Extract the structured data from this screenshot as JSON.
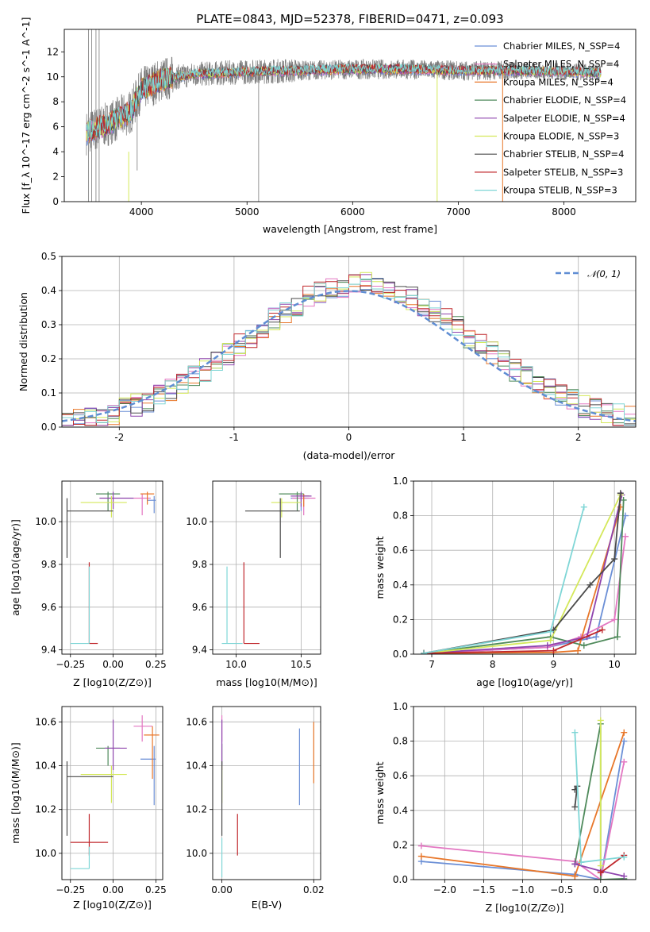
{
  "title": "PLATE=0843, MJD=52378, FIBERID=0471, z=0.093",
  "legend_labels": [
    "Chabrier MILES, N$_{SSP}$=4",
    "Salpeter MILES, N$_{SSP}$=4",
    "Kroupa MILES, N$_{SSP}$=4",
    "Chabrier ELODIE, N$_{SSP}$=4",
    "Salpeter ELODIE, N$_{SSP}$=4",
    "Kroupa ELODIE, N$_{SSP}$=3",
    "Chabrier STELIB, N$_{SSP}$=4",
    "Salpeter STELIB, N$_{SSP}$=3",
    "Kroupa STELIB, N$_{SSP}$=3"
  ],
  "legend_display": [
    "Chabrier MILES, N_SSP=4",
    "Salpeter MILES, N_SSP=4",
    "Kroupa MILES, N_SSP=4",
    "Chabrier ELODIE, N_SSP=4",
    "Salpeter ELODIE, N_SSP=4",
    "Kroupa ELODIE, N_SSP=3",
    "Chabrier STELIB, N_SSP=4",
    "Salpeter STELIB, N_SSP=3",
    "Kroupa STELIB, N_SSP=3"
  ],
  "colors": [
    "#6b8fd6",
    "#e377c2",
    "#e8772a",
    "#4f8a5b",
    "#8e44ad",
    "#d4e85a",
    "#4a4a4a",
    "#c0282d",
    "#7fd6d6"
  ],
  "chart_data": [
    {
      "id": "spectrum",
      "type": "line",
      "xlabel": "wavelength [Angstrom, rest frame]",
      "ylabel": "Flux [f_λ 10^-17 erg cm^-2 s^-1 A^-1]",
      "xlim": [
        3270,
        8680
      ],
      "ylim": [
        0,
        13.8
      ],
      "xticks": [
        4000,
        5000,
        6000,
        7000,
        8000
      ],
      "yticks": [
        0,
        2,
        4,
        6,
        8,
        10,
        12
      ],
      "legend_position": "right",
      "data_range": [
        3480,
        8350
      ],
      "continuum": [
        [
          3480,
          5.5
        ],
        [
          3700,
          6.3
        ],
        [
          3900,
          7.2
        ],
        [
          4000,
          9.0
        ],
        [
          4200,
          9.8
        ],
        [
          4500,
          10.2
        ],
        [
          5000,
          10.4
        ],
        [
          5500,
          10.5
        ],
        [
          6000,
          10.6
        ],
        [
          6500,
          10.6
        ],
        [
          7000,
          10.5
        ],
        [
          7500,
          10.5
        ],
        [
          8000,
          10.4
        ],
        [
          8350,
          10.3
        ]
      ],
      "grid": false
    },
    {
      "id": "residuals",
      "type": "step",
      "xlabel": "(data-model)/error",
      "ylabel": "Normed distribution",
      "xlim": [
        -2.5,
        2.5
      ],
      "ylim": [
        0,
        0.5
      ],
      "xticks": [
        -2,
        -1,
        0,
        1,
        2
      ],
      "yticks": [
        0.0,
        0.1,
        0.2,
        0.3,
        0.4,
        0.5
      ],
      "legend": "𝒩(0, 1)",
      "legend_position": "top-right",
      "reference_curve": "normal(0,1)",
      "grid": true
    },
    {
      "id": "age_vs_Z",
      "type": "errorbar",
      "xlabel": "Z [log10(Z/Z⊙)]",
      "ylabel": "age [log10(age/yr)]",
      "xlim": [
        -0.3,
        0.29
      ],
      "ylim": [
        9.38,
        10.19
      ],
      "xticks": [
        -0.25,
        0.0,
        0.25
      ],
      "xtick_labels": [
        "−0.25",
        "0.00",
        "0.25"
      ],
      "yticks": [
        9.4,
        9.6,
        9.8,
        10.0
      ],
      "ytick_labels": [
        "9.4",
        "9.6",
        "9.8",
        "10.0"
      ],
      "points": [
        {
          "x": 0.24,
          "xerr": [
            0.04,
            0.01
          ],
          "y": 10.1,
          "yerr": [
            0.06,
            0.02
          ]
        },
        {
          "x": 0.17,
          "xerr": [
            0.05,
            0.05
          ],
          "y": 10.11,
          "yerr": [
            0.08,
            0.02
          ]
        },
        {
          "x": 0.2,
          "xerr": [
            0.04,
            0.04
          ],
          "y": 10.13,
          "yerr": [
            0.05,
            0.01
          ]
        },
        {
          "x": -0.03,
          "xerr": [
            0.07,
            0.07
          ],
          "y": 10.13,
          "yerr": [
            0.08,
            0.01
          ]
        },
        {
          "x": 0.0,
          "xerr": [
            0.08,
            0.12
          ],
          "y": 10.11,
          "yerr": [
            0.05,
            0.03
          ]
        },
        {
          "x": -0.01,
          "xerr": [
            0.18,
            0.09
          ],
          "y": 10.09,
          "yerr": [
            0.07,
            0.03
          ]
        },
        {
          "x": -0.27,
          "xerr": [
            0.0,
            0.27
          ],
          "y": 10.05,
          "yerr": [
            0.22,
            0.06
          ]
        },
        {
          "x": -0.14,
          "xerr": [
            0.0,
            0.05
          ],
          "y": 9.43,
          "yerr": [
            0.0,
            0.38
          ]
        },
        {
          "x": -0.14,
          "xerr": [
            0.11,
            0.0
          ],
          "y": 9.43,
          "yerr": [
            0.0,
            0.36
          ]
        }
      ],
      "grid": true
    },
    {
      "id": "age_vs_mass",
      "type": "errorbar",
      "xlabel": "mass [log10(M/M⊙)]",
      "ylabel": "",
      "xlim": [
        9.82,
        10.65
      ],
      "ylim": [
        9.38,
        10.19
      ],
      "xticks": [
        10.0,
        10.5
      ],
      "xtick_labels": [
        "10.0",
        "10.5"
      ],
      "yticks": [
        9.4,
        9.6,
        9.8,
        10.0
      ],
      "ytick_labels": [
        "9.4",
        "9.6",
        "9.8",
        "10.0"
      ],
      "points": [
        {
          "x": 10.5,
          "xerr": [
            0.08,
            0.06
          ],
          "y": 10.11,
          "yerr": [
            0.06,
            0.02
          ]
        },
        {
          "x": 10.52,
          "xerr": [
            0.09,
            0.09
          ],
          "y": 10.11,
          "yerr": [
            0.08,
            0.02
          ]
        },
        {
          "x": 10.52,
          "xerr": [
            0.06,
            0.04
          ],
          "y": 10.12,
          "yerr": [
            0.05,
            0.01
          ]
        },
        {
          "x": 10.47,
          "xerr": [
            0.14,
            0.05
          ],
          "y": 10.13,
          "yerr": [
            0.08,
            0.01
          ]
        },
        {
          "x": 10.5,
          "xerr": [
            0.08,
            0.08
          ],
          "y": 10.12,
          "yerr": [
            0.05,
            0.02
          ]
        },
        {
          "x": 10.35,
          "xerr": [
            0.08,
            0.15
          ],
          "y": 10.09,
          "yerr": [
            0.07,
            0.02
          ]
        },
        {
          "x": 10.34,
          "xerr": [
            0.27,
            0.15
          ],
          "y": 10.05,
          "yerr": [
            0.22,
            0.06
          ]
        },
        {
          "x": 10.06,
          "xerr": [
            0.0,
            0.12
          ],
          "y": 9.43,
          "yerr": [
            0.0,
            0.38
          ]
        },
        {
          "x": 9.93,
          "xerr": [
            0.04,
            0.12
          ],
          "y": 9.43,
          "yerr": [
            0.0,
            0.36
          ]
        }
      ],
      "grid": true
    },
    {
      "id": "mw_vs_age",
      "type": "line",
      "xlabel": "age [log10(age/yr)]",
      "ylabel": "mass weight",
      "xlim": [
        6.7,
        10.35
      ],
      "ylim": [
        0,
        1.0
      ],
      "xticks": [
        7,
        8,
        9,
        10
      ],
      "yticks": [
        0.0,
        0.2,
        0.4,
        0.6,
        0.8,
        1.0
      ],
      "series": [
        {
          "x": [
            6.87,
            8.9,
            9.7,
            10.18
          ],
          "y": [
            0.005,
            0.04,
            0.1,
            0.8
          ]
        },
        {
          "x": [
            6.87,
            8.9,
            9.45,
            10.0,
            10.18
          ],
          "y": [
            0.005,
            0.04,
            0.1,
            0.2,
            0.68
          ]
        },
        {
          "x": [
            6.87,
            9.0,
            9.4,
            10.1
          ],
          "y": [
            0.005,
            0.01,
            0.02,
            0.85
          ]
        },
        {
          "x": [
            6.87,
            8.95,
            9.5,
            10.05,
            10.15
          ],
          "y": [
            0.005,
            0.1,
            0.05,
            0.1,
            0.89
          ]
        },
        {
          "x": [
            6.87,
            8.9,
            9.55,
            10.12
          ],
          "y": [
            0.005,
            0.05,
            0.1,
            0.92
          ]
        },
        {
          "x": [
            6.87,
            8.95,
            10.1
          ],
          "y": [
            0.005,
            0.08,
            0.92
          ]
        },
        {
          "x": [
            6.87,
            9.0,
            9.6,
            10.0,
            10.1
          ],
          "y": [
            0.005,
            0.14,
            0.4,
            0.55,
            0.93
          ]
        },
        {
          "x": [
            6.87,
            9.0,
            9.8
          ],
          "y": [
            0.005,
            0.02,
            0.14
          ]
        },
        {
          "x": [
            6.87,
            8.95,
            9.5
          ],
          "y": [
            0.005,
            0.13,
            0.85
          ]
        }
      ],
      "grid": true
    },
    {
      "id": "mass_vs_Z",
      "type": "errorbar",
      "xlabel": "Z [log10(Z/Z⊙)]",
      "ylabel": "mass [log10(M/M⊙)]",
      "xlim": [
        -0.3,
        0.29
      ],
      "ylim": [
        9.88,
        10.67
      ],
      "xticks": [
        -0.25,
        0.0,
        0.25
      ],
      "xtick_labels": [
        "−0.25",
        "0.00",
        "0.25"
      ],
      "yticks": [
        10.0,
        10.2,
        10.4,
        10.6
      ],
      "ytick_labels": [
        "10.0",
        "10.2",
        "10.4",
        "10.6"
      ],
      "points": [
        {
          "x": 0.24,
          "xerr": [
            0.08,
            0.01
          ],
          "y": 10.43,
          "yerr": [
            0.21,
            0.06
          ]
        },
        {
          "x": 0.17,
          "xerr": [
            0.05,
            0.06
          ],
          "y": 10.58,
          "yerr": [
            0.07,
            0.05
          ]
        },
        {
          "x": 0.23,
          "xerr": [
            0.05,
            0.04
          ],
          "y": 10.54,
          "yerr": [
            0.2,
            0.04
          ]
        },
        {
          "x": -0.03,
          "xerr": [
            0.07,
            0.07
          ],
          "y": 10.48,
          "yerr": [
            0.08,
            0.01
          ]
        },
        {
          "x": 0.0,
          "xerr": [
            0.05,
            0.08
          ],
          "y": 10.48,
          "yerr": [
            0.1,
            0.13
          ]
        },
        {
          "x": -0.01,
          "xerr": [
            0.18,
            0.09
          ],
          "y": 10.36,
          "yerr": [
            0.13,
            0.04
          ]
        },
        {
          "x": -0.27,
          "xerr": [
            0.0,
            0.27
          ],
          "y": 10.35,
          "yerr": [
            0.27,
            0.07
          ]
        },
        {
          "x": -0.14,
          "xerr": [
            0.11,
            0.11
          ],
          "y": 10.05,
          "yerr": [
            0.06,
            0.13
          ]
        },
        {
          "x": -0.14,
          "xerr": [
            0.11,
            0.0
          ],
          "y": 9.93,
          "yerr": [
            0.0,
            0.1
          ]
        }
      ],
      "grid": true
    },
    {
      "id": "mass_vs_ebv",
      "type": "errorbar",
      "xlabel": "E(B-V)",
      "ylabel": "",
      "xlim": [
        -0.002,
        0.0215
      ],
      "ylim": [
        9.88,
        10.67
      ],
      "xticks": [
        0.0,
        0.02
      ],
      "xtick_labels": [
        "0.00",
        "0.02"
      ],
      "yticks": [
        10.0,
        10.2,
        10.4,
        10.6
      ],
      "ytick_labels": [
        "10.0",
        "10.2",
        "10.4",
        "10.6"
      ],
      "points": [
        {
          "x": 0.0169,
          "xerr": [
            0,
            0
          ],
          "y": 10.43,
          "yerr": [
            0.21,
            0.14
          ]
        },
        {
          "x": 0.0,
          "xerr": [
            0,
            0
          ],
          "y": 10.58,
          "yerr": [
            0.07,
            0.05
          ]
        },
        {
          "x": 0.02,
          "xerr": [
            0,
            0
          ],
          "y": 10.54,
          "yerr": [
            0.22,
            0.06
          ]
        },
        {
          "x": 0.0,
          "xerr": [
            0,
            0
          ],
          "y": 10.48,
          "yerr": [
            0.08,
            0.02
          ]
        },
        {
          "x": 0.0,
          "xerr": [
            0,
            0
          ],
          "y": 10.48,
          "yerr": [
            0.1,
            0.13
          ]
        },
        {
          "x": 0.0,
          "xerr": [
            0,
            0
          ],
          "y": 10.36,
          "yerr": [
            0.13,
            0.04
          ]
        },
        {
          "x": 0.0,
          "xerr": [
            0,
            0
          ],
          "y": 10.35,
          "yerr": [
            0.27,
            0.07
          ]
        },
        {
          "x": 0.0034,
          "xerr": [
            0,
            0
          ],
          "y": 10.05,
          "yerr": [
            0.06,
            0.13
          ]
        },
        {
          "x": 0.0,
          "xerr": [
            0,
            0
          ],
          "y": 9.93,
          "yerr": [
            0.04,
            0.14
          ]
        }
      ],
      "grid": true
    },
    {
      "id": "mw_vs_Z",
      "type": "line",
      "xlabel": "Z [log10(Z/Z⊙)]",
      "ylabel": "mass weight",
      "xlim": [
        -2.4,
        0.45
      ],
      "ylim": [
        0,
        1.0
      ],
      "xticks": [
        -2.0,
        -1.5,
        -1.0,
        -0.5,
        0.0
      ],
      "xtick_labels": [
        "−2.0",
        "−1.5",
        "−1.0",
        "−0.5",
        "0.0"
      ],
      "yticks": [
        0.0,
        0.2,
        0.4,
        0.6,
        0.8,
        1.0
      ],
      "series": [
        {
          "x": [
            -2.3,
            -0.33,
            0.0,
            0.3
          ],
          "y": [
            0.105,
            0.03,
            0.0,
            0.8
          ]
        },
        {
          "x": [
            -2.3,
            -0.33,
            0.0,
            0.3
          ],
          "y": [
            0.195,
            0.105,
            0.0,
            0.68
          ]
        },
        {
          "x": [
            -2.3,
            -0.33,
            -0.33,
            0.3
          ],
          "y": [
            0.135,
            0.02,
            0.02,
            0.85
          ]
        },
        {
          "x": [
            -0.33,
            0.0,
            0.0,
            0.3
          ],
          "y": [
            0.09,
            0.9,
            0.0,
            0.005
          ]
        },
        {
          "x": [
            -0.33,
            0.0,
            0.3
          ],
          "y": [
            0.09,
            0.05,
            0.02
          ]
        },
        {
          "x": [
            0.0,
            0.0
          ],
          "y": [
            0.08,
            0.92
          ]
        },
        {
          "x": [
            -0.33,
            -0.3,
            -0.33
          ],
          "y": [
            0.42,
            0.54,
            0.52
          ]
        },
        {
          "x": [
            0.0,
            0.3
          ],
          "y": [
            0.04,
            0.14
          ]
        },
        {
          "x": [
            -0.33,
            -0.25,
            0.3
          ],
          "y": [
            0.85,
            0.1,
            0.13
          ]
        }
      ],
      "grid": true
    }
  ]
}
